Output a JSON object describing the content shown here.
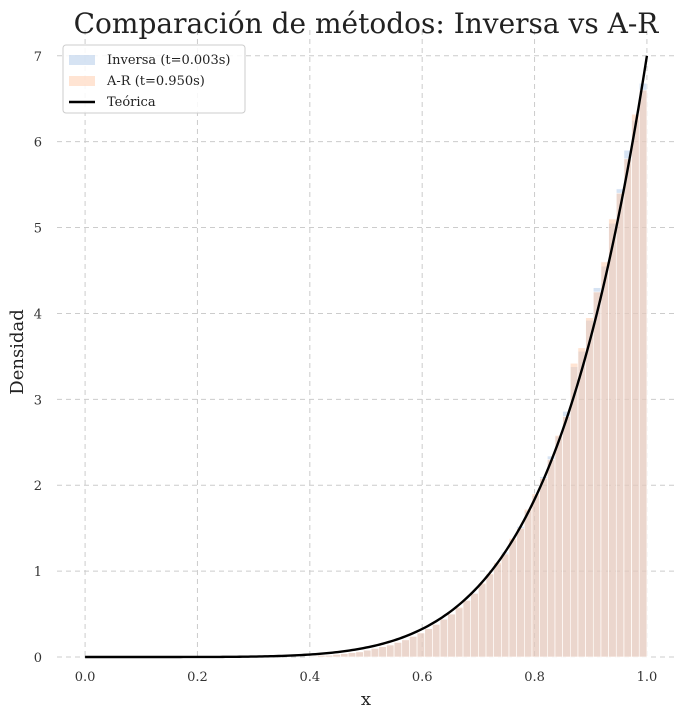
{
  "chart_data": {
    "type": "bar",
    "title": "Comparación de métodos: Inversa vs A-R",
    "xlabel": "x",
    "ylabel": "Densidad",
    "xlim": [
      -0.05,
      1.05
    ],
    "ylim": [
      0,
      7.3
    ],
    "xticks": [
      0.0,
      0.2,
      0.4,
      0.6,
      0.8,
      1.0
    ],
    "xtick_labels": [
      "0.0",
      "0.2",
      "0.4",
      "0.6",
      "0.8",
      "1.0"
    ],
    "yticks": [
      0,
      1,
      2,
      3,
      4,
      5,
      6,
      7
    ],
    "ytick_labels": [
      "0",
      "1",
      "2",
      "3",
      "4",
      "5",
      "6",
      "7"
    ],
    "grid": true,
    "legend_position": "top-left",
    "bin_range": [
      0.4,
      1.0
    ],
    "series": [
      {
        "name": "Inversa (t=0.003s)",
        "kind": "histogram",
        "color": "#aec7e8",
        "values": [
          0.01,
          0.02,
          0.02,
          0.03,
          0.04,
          0.05,
          0.06,
          0.08,
          0.1,
          0.12,
          0.14,
          0.17,
          0.2,
          0.24,
          0.28,
          0.33,
          0.38,
          0.44,
          0.5,
          0.57,
          0.66,
          0.75,
          0.85,
          0.96,
          1.08,
          1.22,
          1.36,
          1.52,
          1.7,
          1.88,
          2.1,
          2.34,
          2.57,
          2.86,
          3.38,
          3.56,
          3.92,
          4.3,
          4.55,
          5.05,
          5.45,
          5.9,
          6.25,
          6.68
        ]
      },
      {
        "name": "A-R (t=0.950s)",
        "kind": "histogram",
        "color": "#ffc9a8",
        "values": [
          0.01,
          0.02,
          0.02,
          0.03,
          0.04,
          0.05,
          0.06,
          0.08,
          0.1,
          0.12,
          0.14,
          0.17,
          0.2,
          0.24,
          0.28,
          0.33,
          0.38,
          0.44,
          0.5,
          0.58,
          0.66,
          0.74,
          0.86,
          0.97,
          1.1,
          1.2,
          1.38,
          1.5,
          1.72,
          1.9,
          2.08,
          2.3,
          2.58,
          2.8,
          3.42,
          3.6,
          3.95,
          4.25,
          4.6,
          5.1,
          5.4,
          5.8,
          6.32,
          6.6
        ]
      },
      {
        "name": "Teórica",
        "kind": "line",
        "color": "#000000",
        "formula": "7x^6"
      }
    ]
  }
}
